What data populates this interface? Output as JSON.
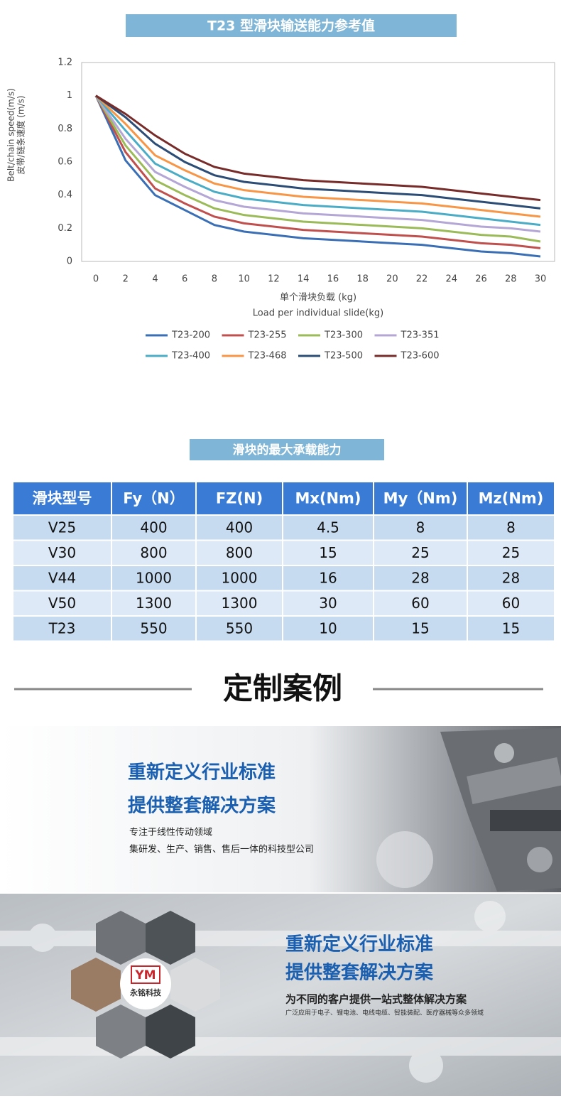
{
  "chart_data": {
    "type": "line",
    "title": "T23  型滑块输送能力参考值",
    "ylabel": [
      "皮带/链条速度 (m/s)",
      "Belt/chain speed(m/s)"
    ],
    "xlabel": [
      "单个滑块负载 (kg)",
      "Load per individual slide(kg)"
    ],
    "x": [
      0,
      2,
      4,
      6,
      8,
      10,
      12,
      14,
      16,
      18,
      20,
      22,
      24,
      26,
      28,
      30
    ],
    "xlim": [
      0,
      30
    ],
    "ylim": [
      0,
      1.2
    ],
    "xticks": [
      0,
      2,
      4,
      6,
      8,
      10,
      12,
      14,
      16,
      18,
      20,
      22,
      24,
      26,
      28,
      30
    ],
    "yticks": [
      0,
      0.2,
      0.4,
      0.6,
      0.8,
      1,
      1.2
    ],
    "grid": false,
    "legend": "bottom",
    "series": [
      {
        "name": "T23-200",
        "color": "#3a6fb5",
        "values": [
          1,
          0.61,
          0.4,
          0.31,
          0.22,
          0.18,
          0.16,
          0.14,
          0.13,
          0.12,
          0.11,
          0.1,
          0.08,
          0.06,
          0.05,
          0.03
        ]
      },
      {
        "name": "T23-255",
        "color": "#c0504d",
        "values": [
          1,
          0.66,
          0.44,
          0.35,
          0.27,
          0.23,
          0.21,
          0.19,
          0.18,
          0.17,
          0.16,
          0.15,
          0.13,
          0.11,
          0.1,
          0.08
        ]
      },
      {
        "name": "T23-300",
        "color": "#9bbb59",
        "values": [
          1,
          0.7,
          0.49,
          0.4,
          0.32,
          0.28,
          0.26,
          0.24,
          0.23,
          0.22,
          0.21,
          0.2,
          0.18,
          0.16,
          0.15,
          0.12
        ]
      },
      {
        "name": "T23-351",
        "color": "#b4a7d6",
        "values": [
          1,
          0.74,
          0.54,
          0.45,
          0.37,
          0.33,
          0.31,
          0.29,
          0.28,
          0.27,
          0.26,
          0.25,
          0.23,
          0.21,
          0.2,
          0.18
        ]
      },
      {
        "name": "T23-400",
        "color": "#4bacc6",
        "values": [
          1,
          0.79,
          0.59,
          0.5,
          0.42,
          0.38,
          0.36,
          0.34,
          0.33,
          0.32,
          0.31,
          0.3,
          0.28,
          0.26,
          0.24,
          0.22
        ]
      },
      {
        "name": "T23-468",
        "color": "#f79646",
        "values": [
          1,
          0.83,
          0.64,
          0.55,
          0.47,
          0.43,
          0.41,
          0.39,
          0.38,
          0.37,
          0.36,
          0.35,
          0.33,
          0.31,
          0.29,
          0.27
        ]
      },
      {
        "name": "T23-500",
        "color": "#2c4d75",
        "values": [
          1,
          0.87,
          0.71,
          0.6,
          0.52,
          0.48,
          0.46,
          0.44,
          0.43,
          0.42,
          0.41,
          0.4,
          0.38,
          0.36,
          0.34,
          0.32
        ]
      },
      {
        "name": "T23-600",
        "color": "#772c2a",
        "values": [
          1,
          0.89,
          0.76,
          0.65,
          0.57,
          0.53,
          0.51,
          0.49,
          0.48,
          0.47,
          0.46,
          0.45,
          0.43,
          0.41,
          0.39,
          0.37
        ]
      }
    ]
  },
  "table": {
    "title": "滑块的最大承载能力",
    "header": [
      "滑块型号",
      "Fy（N）",
      "FZ(N)",
      "Mx(Nm)",
      "My（Nm)",
      "Mz(Nm)"
    ],
    "rows": [
      [
        "V25",
        "400",
        "400",
        "4.5",
        "8",
        "8"
      ],
      [
        "V30",
        "800",
        "800",
        "15",
        "25",
        "25"
      ],
      [
        "V44",
        "1000",
        "1000",
        "16",
        "28",
        "28"
      ],
      [
        "V50",
        "1300",
        "1300",
        "30",
        "60",
        "60"
      ],
      [
        "T23",
        "550",
        "550",
        "10",
        "15",
        "15"
      ]
    ]
  },
  "cases": {
    "title": "定制案例",
    "banner1": {
      "headline": [
        "重新定义行业标准",
        "提供整套解决方案"
      ],
      "text": [
        "专注于线性传动领域",
        "集研发、生产、销售、售后一体的科技型公司"
      ]
    },
    "banner2": {
      "headline": [
        "重新定义行业标准",
        "提供整套解决方案"
      ],
      "text": "为不同的客户提供一站式整体解决方案",
      "note": "广泛应用于电子、锂电池、电线电缆、智能装配、医疗器械等众多领域",
      "logo_mark": "YM",
      "logo": "永铭科技"
    }
  }
}
